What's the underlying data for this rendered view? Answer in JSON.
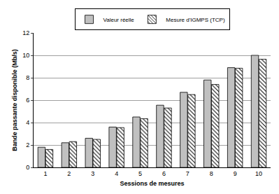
{
  "chart_data": {
    "type": "bar",
    "x_label": "Sessions de mesures",
    "y_label": "Bande passante disponible (Mb/s)",
    "categories": [
      "1",
      "2",
      "3",
      "4",
      "5",
      "6",
      "7",
      "8",
      "9",
      "10"
    ],
    "series": [
      {
        "name": "Valeur réelle",
        "color": "#c0c0c0",
        "marker": "solid",
        "values": [
          1.8,
          2.2,
          2.6,
          3.6,
          4.5,
          5.55,
          6.7,
          7.8,
          8.9,
          10.0
        ]
      },
      {
        "name": "Mesure d'IGMPS (TCP)",
        "color": "#ffffff",
        "marker": "hatch",
        "values": [
          1.6,
          2.3,
          2.5,
          3.55,
          4.35,
          5.3,
          6.5,
          7.4,
          8.85,
          9.65
        ]
      }
    ],
    "ylim": [
      0,
      12
    ],
    "yticks": [
      0,
      2,
      4,
      6,
      8,
      10,
      12
    ],
    "grid": true,
    "legend": "top"
  }
}
